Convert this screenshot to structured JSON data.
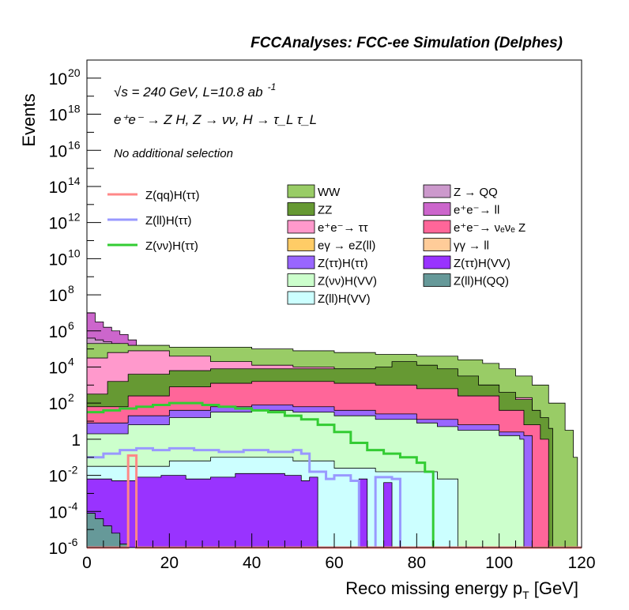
{
  "chart_data": {
    "type": "area",
    "title": "FCCAnalyses: FCC-ee Simulation (Delphes)",
    "xlabel": "Reco missing energy p",
    "xlabel_sub": "T",
    "xlabel_unit": " [GeV]",
    "ylabel": "Events",
    "xlim": [
      0,
      120
    ],
    "ylim_log10": [
      -6,
      21
    ],
    "log_scale_y": true,
    "grid": false,
    "legend_placement": "upper middle",
    "x_ticks": [
      {
        "value": 0,
        "label": "0"
      },
      {
        "value": 20,
        "label": "20"
      },
      {
        "value": 40,
        "label": "40"
      },
      {
        "value": 60,
        "label": "60"
      },
      {
        "value": 80,
        "label": "80"
      },
      {
        "value": 100,
        "label": "100"
      },
      {
        "value": 120,
        "label": "120"
      }
    ],
    "y_ticks": [
      {
        "exp": -6,
        "base": "10",
        "sup": "-6"
      },
      {
        "exp": -4,
        "base": "10",
        "sup": "-4"
      },
      {
        "exp": -2,
        "base": "10",
        "sup": "-2"
      },
      {
        "exp": 0,
        "base": "1",
        "sup": ""
      },
      {
        "exp": 2,
        "base": "10",
        "sup": "2"
      },
      {
        "exp": 4,
        "base": "10",
        "sup": "4"
      },
      {
        "exp": 6,
        "base": "10",
        "sup": "6"
      },
      {
        "exp": 8,
        "base": "10",
        "sup": "8"
      },
      {
        "exp": 10,
        "base": "10",
        "sup": "10"
      },
      {
        "exp": 12,
        "base": "10",
        "sup": "12"
      },
      {
        "exp": 14,
        "base": "10",
        "sup": "14"
      },
      {
        "exp": 16,
        "base": "10",
        "sup": "16"
      },
      {
        "exp": 18,
        "base": "10",
        "sup": "18"
      },
      {
        "exp": 20,
        "base": "10",
        "sup": "20"
      }
    ],
    "annotations": {
      "energy_line": "√s = 240 GeV, L=10.8 ab",
      "energy_sup": "-1",
      "process_line": "e⁺e⁻ → Z H, Z → νν, H → τ_L τ_L",
      "selection_line": "No additional selection"
    },
    "signal_legend": [
      {
        "name": "Z(qq)H(ττ)",
        "color": "#ff8888"
      },
      {
        "name": "Z(ll)H(ττ)",
        "color": "#9999ff"
      },
      {
        "name": "Z(νν)H(ττ)",
        "color": "#33cc33"
      }
    ],
    "background_legend": [
      {
        "name": "WW",
        "color": "#99cc66"
      },
      {
        "name": "ZZ",
        "color": "#669933"
      },
      {
        "name": "e⁺e⁻→ ττ",
        "color": "#ff99cc"
      },
      {
        "name": "eγ → eZ(ll)",
        "color": "#ffcc66"
      },
      {
        "name": "Z(ττ)H(ττ)",
        "color": "#9966ff"
      },
      {
        "name": "Z(νν)H(VV)",
        "color": "#ccffcc"
      },
      {
        "name": "Z(ll)H(VV)",
        "color": "#ccffff"
      },
      {
        "name": "Z → QQ",
        "color": "#cc99cc"
      },
      {
        "name": "e⁺e⁻→ ll",
        "color": "#cc66cc"
      },
      {
        "name": "e⁺e⁻→ νₑνₑ Z",
        "color": "#ff6699"
      },
      {
        "name": "γγ → ll",
        "color": "#ffcc99"
      },
      {
        "name": "Z(ττ)H(VV)",
        "color": "#9933ff"
      },
      {
        "name": "Z(ll)H(QQ)",
        "color": "#669999"
      }
    ],
    "stack_bottom_to_top": [
      {
        "name": "Z(ll)H(QQ)",
        "color": "#669999",
        "points": [
          [
            0,
            -4.1
          ],
          [
            2,
            -4.4
          ],
          [
            4,
            -4.8
          ],
          [
            6,
            -5.2
          ],
          [
            8,
            -5.8
          ],
          [
            10,
            -6
          ]
        ]
      },
      {
        "name": "Z(ττ)H(VV)",
        "color": "#9933ff",
        "points": [
          [
            0,
            -2.2
          ],
          [
            6,
            -2.3
          ],
          [
            12,
            -2.1
          ],
          [
            18,
            -2.0
          ],
          [
            24,
            -2.2
          ],
          [
            30,
            -2.1
          ],
          [
            36,
            -1.9
          ],
          [
            42,
            -1.9
          ],
          [
            48,
            -2.0
          ],
          [
            52,
            -2.3
          ],
          [
            54,
            -2.1
          ],
          [
            56,
            -6
          ],
          [
            66,
            -2.2
          ],
          [
            68,
            -6
          ],
          [
            72,
            -2.4
          ],
          [
            74,
            -6
          ]
        ]
      },
      {
        "name": "Z(ll)H(VV)",
        "color": "#ccffff",
        "points": [
          [
            0,
            -1.5
          ],
          [
            10,
            -1.5
          ],
          [
            20,
            -1.2
          ],
          [
            30,
            -1.0
          ],
          [
            40,
            -1.0
          ],
          [
            50,
            -1.2
          ],
          [
            60,
            -1.6
          ],
          [
            70,
            -1.8
          ],
          [
            80,
            -1.8
          ],
          [
            85,
            -2.2
          ],
          [
            90,
            -6
          ]
        ]
      },
      {
        "name": "Z(νν)H(VV)",
        "color": "#ccffcc",
        "points": [
          [
            0,
            0.3
          ],
          [
            10,
            0.8
          ],
          [
            20,
            1.2
          ],
          [
            30,
            1.5
          ],
          [
            40,
            1.6
          ],
          [
            50,
            1.5
          ],
          [
            60,
            1.3
          ],
          [
            70,
            1.1
          ],
          [
            80,
            0.9
          ],
          [
            85,
            0.7
          ],
          [
            90,
            0.5
          ],
          [
            100,
            0.2
          ],
          [
            105,
            0.0
          ],
          [
            106,
            -6
          ]
        ]
      },
      {
        "name": "Z(ττ)H(ττ)",
        "color": "#9966ff",
        "points": [
          [
            0,
            0.9
          ],
          [
            10,
            1.3
          ],
          [
            20,
            1.6
          ],
          [
            30,
            1.8
          ],
          [
            40,
            1.9
          ],
          [
            50,
            1.8
          ],
          [
            60,
            1.6
          ],
          [
            70,
            1.4
          ],
          [
            80,
            1.1
          ],
          [
            90,
            0.8
          ],
          [
            100,
            0.4
          ],
          [
            106,
            0.2
          ]
        ]
      },
      {
        "name": "e⁺e⁻→ νₑνₑ Z",
        "color": "#ff6699",
        "points": [
          [
            0,
            1.8
          ],
          [
            10,
            2.4
          ],
          [
            20,
            2.9
          ],
          [
            30,
            3.1
          ],
          [
            40,
            3.2
          ],
          [
            50,
            3.2
          ],
          [
            60,
            3.1
          ],
          [
            70,
            3.0
          ],
          [
            80,
            2.8
          ],
          [
            90,
            2.4
          ],
          [
            100,
            1.6
          ],
          [
            106,
            0.8
          ],
          [
            110,
            0.0
          ]
        ]
      },
      {
        "name": "ZZ",
        "color": "#669933",
        "points": [
          [
            0,
            2.5
          ],
          [
            5,
            3.2
          ],
          [
            10,
            3.6
          ],
          [
            20,
            3.8
          ],
          [
            30,
            3.9
          ],
          [
            40,
            3.9
          ],
          [
            50,
            3.9
          ],
          [
            60,
            3.9
          ],
          [
            70,
            4.0
          ],
          [
            74,
            4.3
          ],
          [
            80,
            4.1
          ],
          [
            85,
            3.9
          ],
          [
            90,
            3.5
          ],
          [
            95,
            3.0
          ],
          [
            100,
            2.6
          ],
          [
            104,
            2.2
          ],
          [
            108,
            1.6
          ],
          [
            110,
            1.2
          ],
          [
            112,
            0.6
          ],
          [
            113,
            -6
          ]
        ]
      },
      {
        "name": "e⁺e⁻→ ττ",
        "color": "#ff99cc",
        "points": [
          [
            0,
            4.5
          ],
          [
            5,
            4.8
          ],
          [
            10,
            4.9
          ],
          [
            20,
            4.6
          ],
          [
            30,
            4.3
          ],
          [
            40,
            4.1
          ],
          [
            50,
            4.0
          ],
          [
            60,
            3.9
          ],
          [
            70,
            3.9
          ],
          [
            75,
            3.7
          ],
          [
            80,
            3.5
          ],
          [
            90,
            3.0
          ],
          [
            100,
            2.3
          ],
          [
            108,
            1.5
          ]
        ]
      },
      {
        "name": "WW",
        "color": "#99cc66",
        "points": [
          [
            0,
            5.3
          ],
          [
            10,
            5.2
          ],
          [
            20,
            5.1
          ],
          [
            30,
            5.1
          ],
          [
            40,
            5.0
          ],
          [
            50,
            4.9
          ],
          [
            60,
            4.8
          ],
          [
            70,
            4.7
          ],
          [
            80,
            4.6
          ],
          [
            90,
            4.4
          ],
          [
            96,
            4.2
          ],
          [
            100,
            3.9
          ],
          [
            104,
            3.5
          ],
          [
            108,
            3.0
          ],
          [
            112,
            2.0
          ],
          [
            116,
            0.5
          ],
          [
            118,
            -1.0
          ],
          [
            119,
            -6
          ]
        ]
      },
      {
        "name": "Z → QQ",
        "color": "#cc99cc",
        "points": [
          [
            0,
            5.6
          ],
          [
            2,
            5.5
          ],
          [
            4,
            5.4
          ],
          [
            6,
            5.3
          ]
        ]
      },
      {
        "name": "e⁺e⁻→ ll",
        "color": "#cc66cc",
        "points": [
          [
            0,
            7.0
          ],
          [
            2,
            6.5
          ],
          [
            4,
            6.2
          ],
          [
            6,
            6.0
          ],
          [
            8,
            5.8
          ],
          [
            10,
            5.5
          ]
        ]
      },
      {
        "name": "eγ → eZ(ll)",
        "color": "#ffcc66",
        "points": [
          [
            0,
            6.2
          ],
          [
            1,
            6.0
          ],
          [
            2,
            5.7
          ],
          [
            3,
            5.5
          ]
        ]
      },
      {
        "name": "γγ → ll",
        "color": "#ffcc99",
        "points": [
          [
            0,
            6.5
          ],
          [
            1,
            6.2
          ],
          [
            2,
            5.9
          ],
          [
            3,
            5.5
          ]
        ]
      }
    ],
    "signal_lines": [
      {
        "name": "Z(νν)H(ττ)",
        "color": "#33cc33",
        "points": [
          [
            0,
            1.5
          ],
          [
            4,
            1.6
          ],
          [
            8,
            1.7
          ],
          [
            12,
            1.8
          ],
          [
            16,
            1.9
          ],
          [
            20,
            2.0
          ],
          [
            24,
            2.0
          ],
          [
            28,
            1.9
          ],
          [
            32,
            1.8
          ],
          [
            36,
            1.7
          ],
          [
            40,
            1.6
          ],
          [
            44,
            1.5
          ],
          [
            48,
            1.3
          ],
          [
            52,
            1.1
          ],
          [
            56,
            0.8
          ],
          [
            60,
            0.4
          ],
          [
            64,
            -0.2
          ],
          [
            68,
            -0.6
          ],
          [
            72,
            -0.8
          ],
          [
            76,
            -1.0
          ],
          [
            80,
            -1.3
          ],
          [
            82,
            -1.8
          ],
          [
            84,
            -6
          ]
        ]
      },
      {
        "name": "Z(ll)H(ττ)",
        "color": "#9999ff",
        "points": [
          [
            0,
            -1.0
          ],
          [
            4,
            -0.8
          ],
          [
            8,
            -0.6
          ],
          [
            12,
            -0.5
          ],
          [
            16,
            -0.6
          ],
          [
            20,
            -0.5
          ],
          [
            26,
            -0.6
          ],
          [
            32,
            -0.7
          ],
          [
            38,
            -0.6
          ],
          [
            44,
            -0.7
          ],
          [
            50,
            -0.6
          ],
          [
            52,
            -0.8
          ],
          [
            54,
            -1.8
          ],
          [
            58,
            -2.2
          ],
          [
            60,
            -2.0
          ],
          [
            64,
            -2.3
          ],
          [
            66,
            -6
          ],
          [
            70,
            -2.1
          ],
          [
            74,
            -2.2
          ],
          [
            76,
            -6
          ]
        ]
      },
      {
        "name": "Z(qq)H(ττ)",
        "color": "#ff8888",
        "points": [
          [
            0,
            -6
          ],
          [
            10,
            -6
          ],
          [
            10,
            -0.9
          ],
          [
            12,
            -0.9
          ],
          [
            12,
            -6
          ],
          [
            120,
            -6
          ]
        ]
      }
    ]
  }
}
